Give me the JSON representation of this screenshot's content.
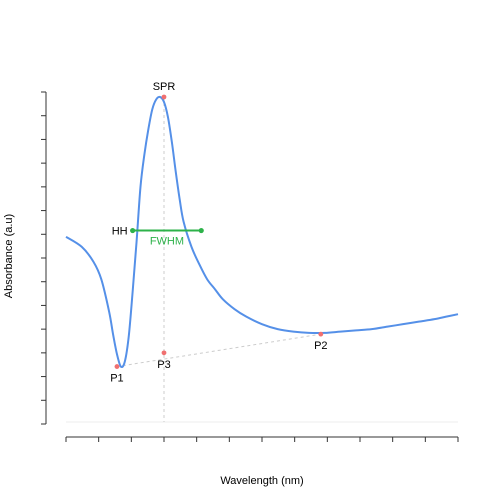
{
  "chart_data": {
    "type": "line",
    "xlabel": "Wavelength (nm)",
    "ylabel": "Absorbance (a.u)",
    "xlim": [
      0,
      100
    ],
    "ylim": [
      -0.03,
      1.3
    ],
    "grid": false,
    "series": [
      {
        "x": [
          0,
          4,
          7,
          9,
          11,
          12,
          13,
          14,
          15,
          16,
          17,
          18,
          19,
          20,
          21,
          22,
          23,
          24,
          25,
          26,
          27,
          28,
          29,
          30,
          32,
          34,
          36,
          38,
          40,
          43,
          46,
          50,
          54,
          58,
          62,
          66,
          70,
          74,
          78,
          82,
          86,
          90,
          94,
          97,
          100
        ],
        "values": [
          0.72,
          0.68,
          0.62,
          0.55,
          0.42,
          0.33,
          0.25,
          0.2,
          0.22,
          0.32,
          0.5,
          0.7,
          0.92,
          1.05,
          1.15,
          1.23,
          1.27,
          1.28,
          1.26,
          1.2,
          1.1,
          0.98,
          0.87,
          0.78,
          0.68,
          0.61,
          0.55,
          0.51,
          0.47,
          0.43,
          0.4,
          0.37,
          0.35,
          0.34,
          0.335,
          0.335,
          0.34,
          0.345,
          0.35,
          0.36,
          0.37,
          0.38,
          0.39,
          0.4,
          0.41
        ],
        "color": "#5590e8"
      }
    ],
    "annotations": {
      "points": [
        {
          "label": "SPR",
          "x": 25,
          "y": 1.28
        },
        {
          "label": "P1",
          "x": 13,
          "y": 0.2
        },
        {
          "label": "P2",
          "x": 65,
          "y": 0.33
        },
        {
          "label": "P3",
          "x": 25,
          "y": 0.255
        }
      ],
      "hh_label": "HH",
      "fwhm": {
        "label": "FWHM",
        "x1": 17,
        "x2": 34.5,
        "y": 0.745,
        "color": "#2db24a"
      },
      "point_color": "#f07070",
      "guide_color": "#cccccc"
    }
  }
}
